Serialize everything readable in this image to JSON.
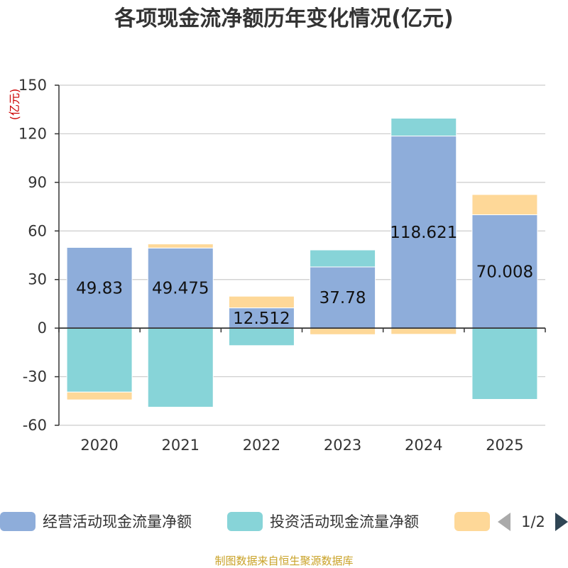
{
  "chart_data": {
    "type": "bar",
    "stacked": true,
    "title": "各项现金流净额历年变化情况(亿元)",
    "unit_label": "(亿元)",
    "categories": [
      "2020",
      "2021",
      "2022",
      "2023",
      "2024",
      "2025"
    ],
    "ylim": [
      -60,
      150
    ],
    "yticks": [
      150,
      120,
      90,
      60,
      30,
      0,
      -30,
      -60
    ],
    "grid": true,
    "legend_position": "bottom",
    "series": [
      {
        "name": "经营活动现金流量净额",
        "color": "#8eadda",
        "values": [
          49.83,
          49.475,
          12.512,
          37.78,
          118.621,
          70.008
        ],
        "labels": [
          "49.83",
          "49.475",
          "12.512",
          "37.78",
          "118.621",
          "70.008"
        ]
      },
      {
        "name": "投资活动现金流量净额",
        "color": "#87d4d8",
        "values": [
          -39.5,
          -48.8,
          -10.8,
          10.5,
          11.0,
          -44.0
        ]
      },
      {
        "name": "",
        "color": "#fed898",
        "values": [
          -4.8,
          2.5,
          7.2,
          -4.0,
          -3.8,
          12.5
        ]
      }
    ]
  },
  "legend": {
    "page": "1/2"
  },
  "source": "制图数据来自恒生聚源数据库"
}
